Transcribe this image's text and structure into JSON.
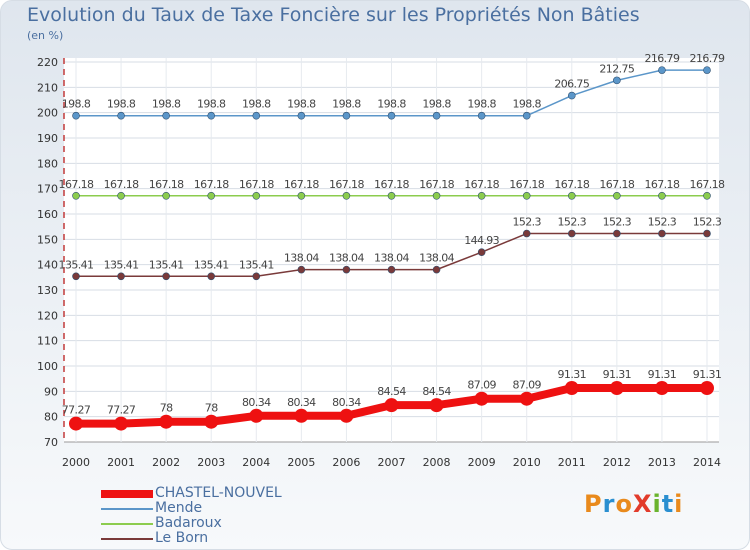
{
  "title": "Evolution du Taux de Taxe Foncière sur les Propriétés Non Bâties",
  "unit": "(en %)",
  "logo": {
    "text": "ProXiti",
    "colors": [
      "#e98a1c",
      "#2a8fd0",
      "#e98a1c",
      "#e23b2b",
      "#6ab42d",
      "#2a8fd0",
      "#e98a1c"
    ]
  },
  "chart_data": {
    "type": "line",
    "title": "Evolution du Taux de Taxe Foncière sur les Propriétés Non Bâties",
    "ylabel": "(en %)",
    "xlabel": "",
    "ylim": [
      70,
      220
    ],
    "yticks": [
      70,
      80,
      90,
      100,
      110,
      120,
      130,
      140,
      150,
      160,
      170,
      180,
      190,
      200,
      210,
      220
    ],
    "x": [
      "2000",
      "2001",
      "2002",
      "2003",
      "2004",
      "2005",
      "2006",
      "2007",
      "2008",
      "2009",
      "2010",
      "2011",
      "2012",
      "2013",
      "2014"
    ],
    "series": [
      {
        "name": "CHASTEL-NOUVEL",
        "color": "#ee1111",
        "bold": true,
        "values": [
          77.27,
          77.27,
          78,
          78,
          80.34,
          80.34,
          80.34,
          84.54,
          84.54,
          87.09,
          87.09,
          91.31,
          91.31,
          91.31,
          91.31
        ],
        "labels": [
          "77.27",
          "77.27",
          "78",
          "78",
          "80.34",
          "80.34",
          "80.34",
          "84.54",
          "84.54",
          "87.09",
          "87.09",
          "91.31",
          "91.31",
          "91.31",
          "91.31"
        ]
      },
      {
        "name": "Mende",
        "color": "#5b96c9",
        "bold": false,
        "values": [
          198.8,
          198.8,
          198.8,
          198.8,
          198.8,
          198.8,
          198.8,
          198.8,
          198.8,
          198.8,
          198.8,
          206.75,
          212.75,
          216.79,
          216.79
        ],
        "labels": [
          "198.8",
          "198.8",
          "198.8",
          "198.8",
          "198.8",
          "198.8",
          "198.8",
          "198.8",
          "198.8",
          "198.8",
          "198.8",
          "206.75",
          "212.75",
          "216.79",
          "216.79"
        ]
      },
      {
        "name": "Badaroux",
        "color": "#8ccc4e",
        "bold": false,
        "values": [
          167.18,
          167.18,
          167.18,
          167.18,
          167.18,
          167.18,
          167.18,
          167.18,
          167.18,
          167.18,
          167.18,
          167.18,
          167.18,
          167.18,
          167.18
        ],
        "labels": [
          "167.18",
          "167.18",
          "167.18",
          "167.18",
          "167.18",
          "167.18",
          "167.18",
          "167.18",
          "167.18",
          "167.18",
          "167.18",
          "167.18",
          "167.18",
          "167.18",
          "167.18"
        ]
      },
      {
        "name": "Le Born",
        "color": "#7a3a3a",
        "bold": false,
        "values": [
          135.41,
          135.41,
          135.41,
          135.41,
          135.41,
          138.04,
          138.04,
          138.04,
          138.04,
          144.93,
          152.3,
          152.3,
          152.3,
          152.3,
          152.3
        ],
        "labels": [
          "135.41",
          "135.41",
          "135.41",
          "135.41",
          "135.41",
          "138.04",
          "138.04",
          "138.04",
          "138.04",
          "144.93",
          "152.3",
          "152.3",
          "152.3",
          "152.3",
          "152.3"
        ]
      }
    ]
  }
}
